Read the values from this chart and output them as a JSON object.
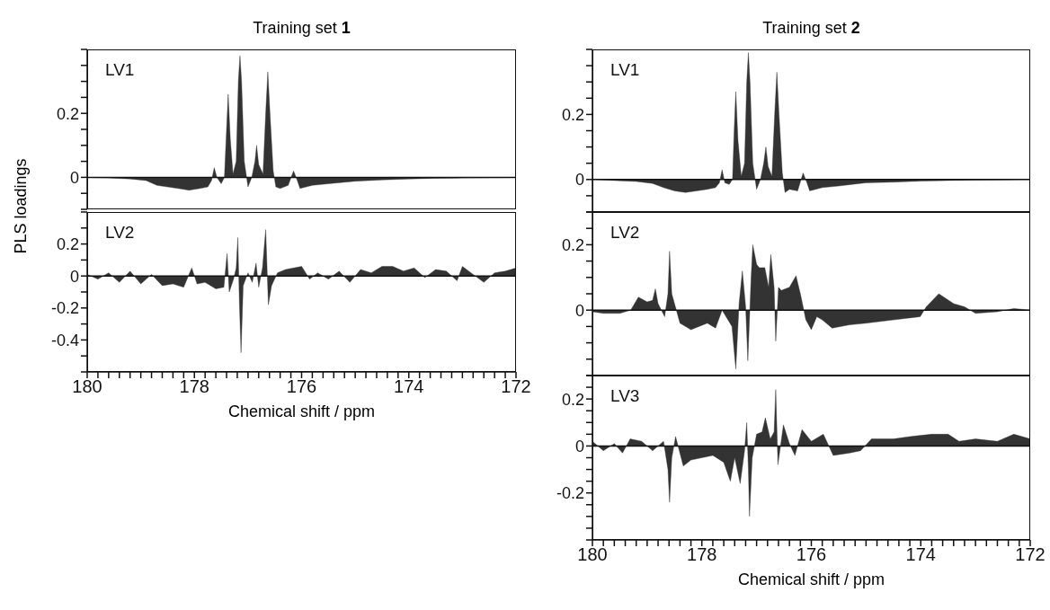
{
  "chart_data": [
    {
      "type": "area",
      "title": "Training set 1",
      "ylabel": "PLS loadings",
      "annotations": [
        "LV1"
      ],
      "color": "#333333",
      "tick_labels": "y",
      "xlim": [
        180,
        172
      ],
      "ylim": [
        -0.1,
        0.4
      ],
      "yticks": [
        {
          "value": -0.1,
          "label": null
        },
        {
          "value": -0.05,
          "label": null
        },
        0,
        {
          "value": 0.05,
          "label": null
        },
        {
          "value": 0.1,
          "label": null
        },
        {
          "value": 0.15,
          "label": null
        },
        0.2,
        {
          "value": 0.25,
          "label": null
        },
        {
          "value": 0.3,
          "label": null
        },
        {
          "value": 0.35,
          "label": null
        },
        {
          "value": 0.4,
          "label": null
        }
      ],
      "ref_lines": [
        {
          "axis": "y",
          "value": 0
        }
      ],
      "x": [
        180,
        179.6,
        179.2,
        178.9,
        178.7,
        178.5,
        178.3,
        178.1,
        177.9,
        177.75,
        177.68,
        177.63,
        177.58,
        177.5,
        177.44,
        177.4,
        177.37,
        177.33,
        177.28,
        177.22,
        177.18,
        177.15,
        177.12,
        177.07,
        177.0,
        176.93,
        176.87,
        176.84,
        176.8,
        176.72,
        176.67,
        176.63,
        176.59,
        176.53,
        176.48,
        176.4,
        176.25,
        176.15,
        176.08,
        176.03,
        175.8,
        175.5,
        175.0,
        174.5,
        174.0,
        173.5,
        173.0,
        172.5,
        172
      ],
      "values": [
        0,
        -0.002,
        -0.005,
        -0.01,
        -0.025,
        -0.03,
        -0.035,
        -0.04,
        -0.035,
        -0.03,
        -0.01,
        0.03,
        0,
        -0.02,
        0,
        0.15,
        0.26,
        0.12,
        0.01,
        0.05,
        0.3,
        0.38,
        0.3,
        0.05,
        -0.03,
        0,
        0.05,
        0.1,
        0.04,
        0.01,
        0.2,
        0.33,
        0.2,
        0.02,
        -0.03,
        -0.035,
        -0.025,
        0.02,
        -0.01,
        -0.035,
        -0.025,
        -0.02,
        -0.012,
        -0.008,
        -0.005,
        -0.003,
        -0.002,
        -0.001,
        0
      ]
    },
    {
      "type": "area",
      "xlabel": "Chemical shift / ppm",
      "annotations": [
        "LV2"
      ],
      "color": "#333333",
      "xlim": [
        180,
        172
      ],
      "ylim": [
        -0.6,
        0.4
      ],
      "xticks": [
        180,
        {
          "value": 179.8,
          "label": null
        },
        {
          "value": 179.6,
          "label": null
        },
        {
          "value": 179.4,
          "label": null
        },
        {
          "value": 179.2,
          "label": null
        },
        {
          "value": 179,
          "label": null
        },
        {
          "value": 178.8,
          "label": null
        },
        {
          "value": 178.6,
          "label": null
        },
        {
          "value": 178.4,
          "label": null
        },
        {
          "value": 178.2,
          "label": null
        },
        178,
        {
          "value": 177.8,
          "label": null
        },
        {
          "value": 177.6,
          "label": null
        },
        {
          "value": 177.4,
          "label": null
        },
        {
          "value": 177.2,
          "label": null
        },
        {
          "value": 177,
          "label": null
        },
        {
          "value": 176.8,
          "label": null
        },
        {
          "value": 176.6,
          "label": null
        },
        {
          "value": 176.4,
          "label": null
        },
        {
          "value": 176.2,
          "label": null
        },
        176,
        {
          "value": 175.8,
          "label": null
        },
        {
          "value": 175.6,
          "label": null
        },
        {
          "value": 175.4,
          "label": null
        },
        {
          "value": 175.2,
          "label": null
        },
        {
          "value": 175,
          "label": null
        },
        {
          "value": 174.8,
          "label": null
        },
        {
          "value": 174.6,
          "label": null
        },
        {
          "value": 174.4,
          "label": null
        },
        {
          "value": 174.2,
          "label": null
        },
        174,
        {
          "value": 173.8,
          "label": null
        },
        {
          "value": 173.6,
          "label": null
        },
        {
          "value": 173.4,
          "label": null
        },
        {
          "value": 173.2,
          "label": null
        },
        {
          "value": 173,
          "label": null
        },
        {
          "value": 172.8,
          "label": null
        },
        {
          "value": 172.6,
          "label": null
        },
        {
          "value": 172.4,
          "label": null
        },
        {
          "value": 172.2,
          "label": null
        },
        172
      ],
      "yticks": [
        {
          "value": -0.6,
          "label": null
        },
        {
          "value": -0.5,
          "label": null
        },
        -0.4,
        {
          "value": -0.3,
          "label": null
        },
        -0.2,
        {
          "value": -0.1,
          "label": null
        },
        0,
        {
          "value": 0.1,
          "label": null
        },
        0.2,
        {
          "value": 0.3,
          "label": null
        },
        {
          "value": 0.4,
          "label": null
        }
      ],
      "ref_lines": [
        {
          "axis": "y",
          "value": 0
        }
      ],
      "x": [
        180,
        179.8,
        179.6,
        179.4,
        179.2,
        179.0,
        178.8,
        178.6,
        178.4,
        178.2,
        178.05,
        177.95,
        177.8,
        177.6,
        177.45,
        177.39,
        177.35,
        177.27,
        177.22,
        177.19,
        177.16,
        177.13,
        177.09,
        177.0,
        176.92,
        176.85,
        176.8,
        176.73,
        176.67,
        176.62,
        176.56,
        176.45,
        176.3,
        176.0,
        175.85,
        175.7,
        175.5,
        175.3,
        175.1,
        174.9,
        174.7,
        174.5,
        174.3,
        174.1,
        173.9,
        173.7,
        173.5,
        173.3,
        173.1,
        173.0,
        172.8,
        172.6,
        172.4,
        172.2,
        172
      ],
      "values": [
        0.01,
        -0.02,
        0.02,
        -0.04,
        0.03,
        -0.05,
        0.01,
        -0.06,
        -0.05,
        -0.07,
        0.05,
        -0.05,
        -0.04,
        -0.08,
        -0.07,
        0.14,
        -0.1,
        -0.02,
        0.05,
        0.24,
        -0.17,
        -0.48,
        -0.06,
        0.02,
        -0.04,
        0.08,
        -0.07,
        0.05,
        0.29,
        -0.18,
        -0.06,
        0.02,
        0.04,
        0.06,
        -0.02,
        0.02,
        -0.02,
        0.03,
        -0.04,
        0.04,
        0.02,
        0.06,
        0.06,
        0.03,
        0.05,
        -0.01,
        0.04,
        0.03,
        -0.03,
        0.06,
        0.01,
        -0.04,
        0.02,
        0.03,
        0.05
      ]
    },
    {
      "type": "area",
      "title": "Training set 2",
      "annotations": [
        "LV1"
      ],
      "color": "#333333",
      "tick_labels": "y",
      "xlim": [
        180,
        172
      ],
      "ylim": [
        -0.1,
        0.4
      ],
      "yticks": [
        {
          "value": -0.1,
          "label": null
        },
        {
          "value": -0.05,
          "label": null
        },
        0,
        {
          "value": 0.05,
          "label": null
        },
        {
          "value": 0.1,
          "label": null
        },
        {
          "value": 0.15,
          "label": null
        },
        0.2,
        {
          "value": 0.25,
          "label": null
        },
        {
          "value": 0.3,
          "label": null
        },
        {
          "value": 0.35,
          "label": null
        },
        {
          "value": 0.4,
          "label": null
        }
      ],
      "ref_lines": [
        {
          "axis": "y",
          "value": 0
        }
      ],
      "x": [
        180,
        179.6,
        179.2,
        178.9,
        178.7,
        178.5,
        178.3,
        178.1,
        177.9,
        177.75,
        177.68,
        177.63,
        177.58,
        177.5,
        177.44,
        177.41,
        177.38,
        177.34,
        177.28,
        177.22,
        177.18,
        177.15,
        177.12,
        177.07,
        177.0,
        176.93,
        176.87,
        176.83,
        176.79,
        176.72,
        176.67,
        176.63,
        176.59,
        176.53,
        176.48,
        176.4,
        176.25,
        176.15,
        176.08,
        176.03,
        175.8,
        175.5,
        175.0,
        174.5,
        174.0,
        173.5,
        173.0,
        172.5,
        172
      ],
      "values": [
        0,
        -0.003,
        -0.006,
        -0.012,
        -0.025,
        -0.035,
        -0.04,
        -0.035,
        -0.03,
        -0.025,
        -0.01,
        0.03,
        -0.01,
        -0.015,
        0,
        0.15,
        0.27,
        0.12,
        0.01,
        0.05,
        0.3,
        0.39,
        0.3,
        0.05,
        -0.03,
        0,
        0.05,
        0.1,
        0.04,
        0.01,
        0.2,
        0.33,
        0.2,
        0.02,
        -0.04,
        -0.03,
        -0.035,
        0.02,
        -0.01,
        -0.035,
        -0.025,
        -0.02,
        -0.01,
        -0.008,
        -0.005,
        -0.003,
        -0.002,
        -0.001,
        0
      ]
    },
    {
      "type": "area",
      "annotations": [
        "LV2"
      ],
      "color": "#333333",
      "tick_labels": "y",
      "xlim": [
        180,
        172
      ],
      "ylim": [
        -0.2,
        0.3
      ],
      "yticks": [
        {
          "value": -0.2,
          "label": null
        },
        {
          "value": -0.15,
          "label": null
        },
        {
          "value": -0.1,
          "label": null
        },
        {
          "value": -0.05,
          "label": null
        },
        0,
        {
          "value": 0.05,
          "label": null
        },
        {
          "value": 0.1,
          "label": null
        },
        {
          "value": 0.15,
          "label": null
        },
        0.2,
        {
          "value": 0.25,
          "label": null
        },
        {
          "value": 0.3,
          "label": null
        }
      ],
      "ref_lines": [
        {
          "axis": "y",
          "value": 0
        }
      ],
      "x": [
        180,
        179.8,
        179.5,
        179.3,
        179.16,
        179.0,
        178.9,
        178.85,
        178.8,
        178.68,
        178.62,
        178.59,
        178.55,
        178.4,
        178.2,
        177.9,
        177.75,
        177.63,
        177.45,
        177.38,
        177.32,
        177.26,
        177.2,
        177.16,
        177.1,
        177.07,
        177.0,
        176.95,
        176.85,
        176.78,
        176.74,
        176.68,
        176.65,
        176.6,
        176.55,
        176.4,
        176.28,
        176.2,
        176.1,
        176.0,
        175.9,
        175.8,
        175.62,
        175.3,
        175.0,
        174.5,
        174.01,
        173.9,
        173.67,
        173.4,
        173.2,
        173.0,
        172.6,
        172.3,
        172
      ],
      "values": [
        -0.005,
        -0.01,
        -0.01,
        0,
        0.04,
        0.025,
        0.03,
        0.065,
        0.02,
        -0.02,
        0.05,
        0.18,
        0.05,
        -0.04,
        -0.06,
        -0.04,
        -0.055,
        0,
        -0.05,
        -0.18,
        0.02,
        0.12,
        0.01,
        -0.155,
        0.1,
        0.2,
        0.14,
        0.13,
        0.13,
        0.07,
        0.17,
        0.07,
        -0.095,
        0.07,
        0.06,
        0.07,
        0.105,
        0.05,
        -0.03,
        -0.06,
        -0.02,
        -0.03,
        -0.055,
        -0.045,
        -0.04,
        -0.03,
        -0.02,
        0.01,
        0.05,
        0.02,
        0.01,
        -0.01,
        -0.005,
        0.005,
        0
      ]
    },
    {
      "type": "area",
      "xlabel": "Chemical shift / ppm",
      "annotations": [
        "LV3"
      ],
      "color": "#333333",
      "xlim": [
        180,
        172
      ],
      "ylim": [
        -0.4,
        0.3
      ],
      "xticks": [
        180,
        {
          "value": 179.8,
          "label": null
        },
        {
          "value": 179.6,
          "label": null
        },
        {
          "value": 179.4,
          "label": null
        },
        {
          "value": 179.2,
          "label": null
        },
        {
          "value": 179,
          "label": null
        },
        {
          "value": 178.8,
          "label": null
        },
        {
          "value": 178.6,
          "label": null
        },
        {
          "value": 178.4,
          "label": null
        },
        {
          "value": 178.2,
          "label": null
        },
        178,
        {
          "value": 177.8,
          "label": null
        },
        {
          "value": 177.6,
          "label": null
        },
        {
          "value": 177.4,
          "label": null
        },
        {
          "value": 177.2,
          "label": null
        },
        {
          "value": 177,
          "label": null
        },
        {
          "value": 176.8,
          "label": null
        },
        {
          "value": 176.6,
          "label": null
        },
        {
          "value": 176.4,
          "label": null
        },
        {
          "value": 176.2,
          "label": null
        },
        176,
        {
          "value": 175.8,
          "label": null
        },
        {
          "value": 175.6,
          "label": null
        },
        {
          "value": 175.4,
          "label": null
        },
        {
          "value": 175.2,
          "label": null
        },
        {
          "value": 175,
          "label": null
        },
        {
          "value": 174.8,
          "label": null
        },
        {
          "value": 174.6,
          "label": null
        },
        {
          "value": 174.4,
          "label": null
        },
        {
          "value": 174.2,
          "label": null
        },
        174,
        {
          "value": 173.8,
          "label": null
        },
        {
          "value": 173.6,
          "label": null
        },
        {
          "value": 173.4,
          "label": null
        },
        {
          "value": 173.2,
          "label": null
        },
        {
          "value": 173,
          "label": null
        },
        {
          "value": 172.8,
          "label": null
        },
        {
          "value": 172.6,
          "label": null
        },
        {
          "value": 172.4,
          "label": null
        },
        {
          "value": 172.2,
          "label": null
        },
        172
      ],
      "yticks": [
        {
          "value": -0.4,
          "label": null
        },
        {
          "value": -0.35,
          "label": null
        },
        {
          "value": -0.3,
          "label": null
        },
        {
          "value": -0.25,
          "label": null
        },
        -0.2,
        {
          "value": -0.15,
          "label": null
        },
        {
          "value": -0.1,
          "label": null
        },
        {
          "value": -0.05,
          "label": null
        },
        0,
        {
          "value": 0.05,
          "label": null
        },
        {
          "value": 0.1,
          "label": null
        },
        {
          "value": 0.15,
          "label": null
        },
        0.2,
        {
          "value": 0.25,
          "label": null
        },
        {
          "value": 0.3,
          "label": null
        }
      ],
      "ref_lines": [
        {
          "axis": "y",
          "value": 0
        }
      ],
      "x": [
        180,
        179.8,
        179.6,
        179.45,
        179.31,
        179.1,
        178.9,
        178.7,
        178.62,
        178.59,
        178.55,
        178.48,
        178.34,
        178.2,
        178.0,
        177.8,
        177.6,
        177.48,
        177.4,
        177.3,
        177.22,
        177.18,
        177.15,
        177.13,
        177.08,
        177.0,
        176.9,
        176.84,
        176.75,
        176.68,
        176.65,
        176.61,
        176.51,
        176.4,
        176.3,
        176.17,
        176.0,
        175.78,
        175.6,
        175.3,
        175.1,
        174.9,
        174.5,
        174.2,
        173.8,
        173.5,
        173.3,
        173.0,
        172.6,
        172.3,
        172
      ],
      "values": [
        0.02,
        -0.02,
        0.01,
        -0.03,
        0.03,
        0.02,
        -0.02,
        0.02,
        -0.1,
        -0.24,
        -0.05,
        0.04,
        -0.085,
        -0.06,
        -0.05,
        -0.04,
        -0.07,
        -0.15,
        -0.05,
        -0.16,
        -0.02,
        0.1,
        -0.1,
        -0.3,
        -0.05,
        0.05,
        0.06,
        0.12,
        0.03,
        0.06,
        0.24,
        -0.08,
        0.09,
        0.01,
        -0.04,
        0.07,
        0.02,
        0.05,
        -0.04,
        -0.03,
        -0.02,
        0.03,
        0.03,
        0.04,
        0.05,
        0.05,
        0.02,
        0.03,
        0.02,
        0.05,
        0.03
      ]
    }
  ]
}
